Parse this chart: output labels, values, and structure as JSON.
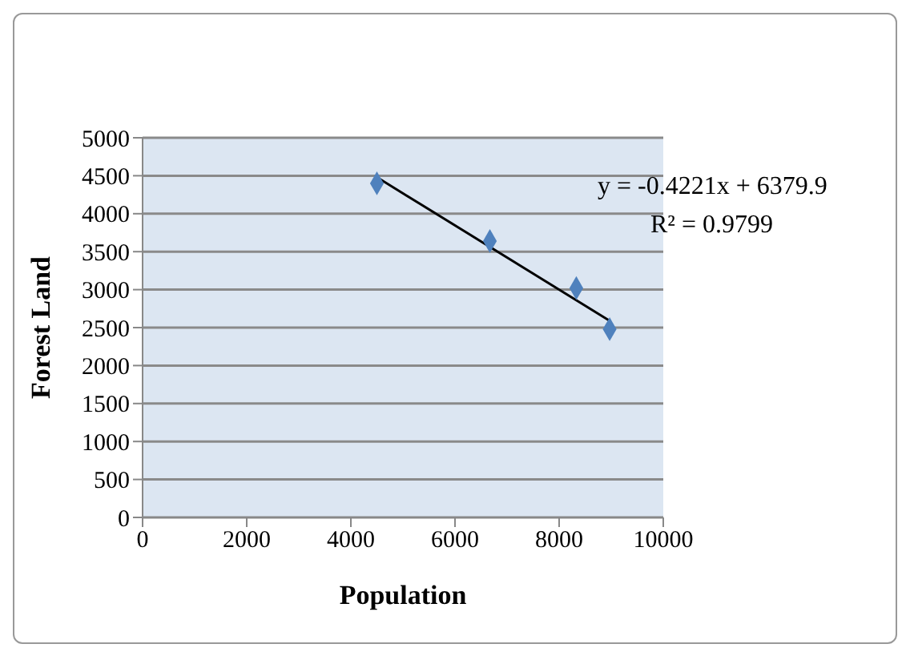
{
  "chart_data": {
    "type": "scatter",
    "xlabel": "Population",
    "ylabel": "Forest Land",
    "series": [
      {
        "color": "#4f81bd",
        "marker": "diamond",
        "x": [
          4500,
          6670,
          8330,
          8970
        ],
        "values": [
          4400,
          3640,
          3020,
          2480
        ]
      },
      {
        "type": "line",
        "color": "#000000",
        "x": [
          4500,
          8970
        ],
        "values": [
          4480,
          2590
        ],
        "marker": "none"
      }
    ],
    "xlim": [
      0,
      10000
    ],
    "xticks": [
      0,
      2000,
      4000,
      6000,
      8000,
      10000
    ],
    "ylim": [
      0,
      5000
    ],
    "yticks": [
      0,
      500,
      1000,
      1500,
      2000,
      2500,
      3000,
      3500,
      4000,
      4500,
      5000
    ],
    "grid": "y",
    "annotations": [
      "y = -0.4221x + 6379.9",
      "R² = 0.9799"
    ]
  }
}
